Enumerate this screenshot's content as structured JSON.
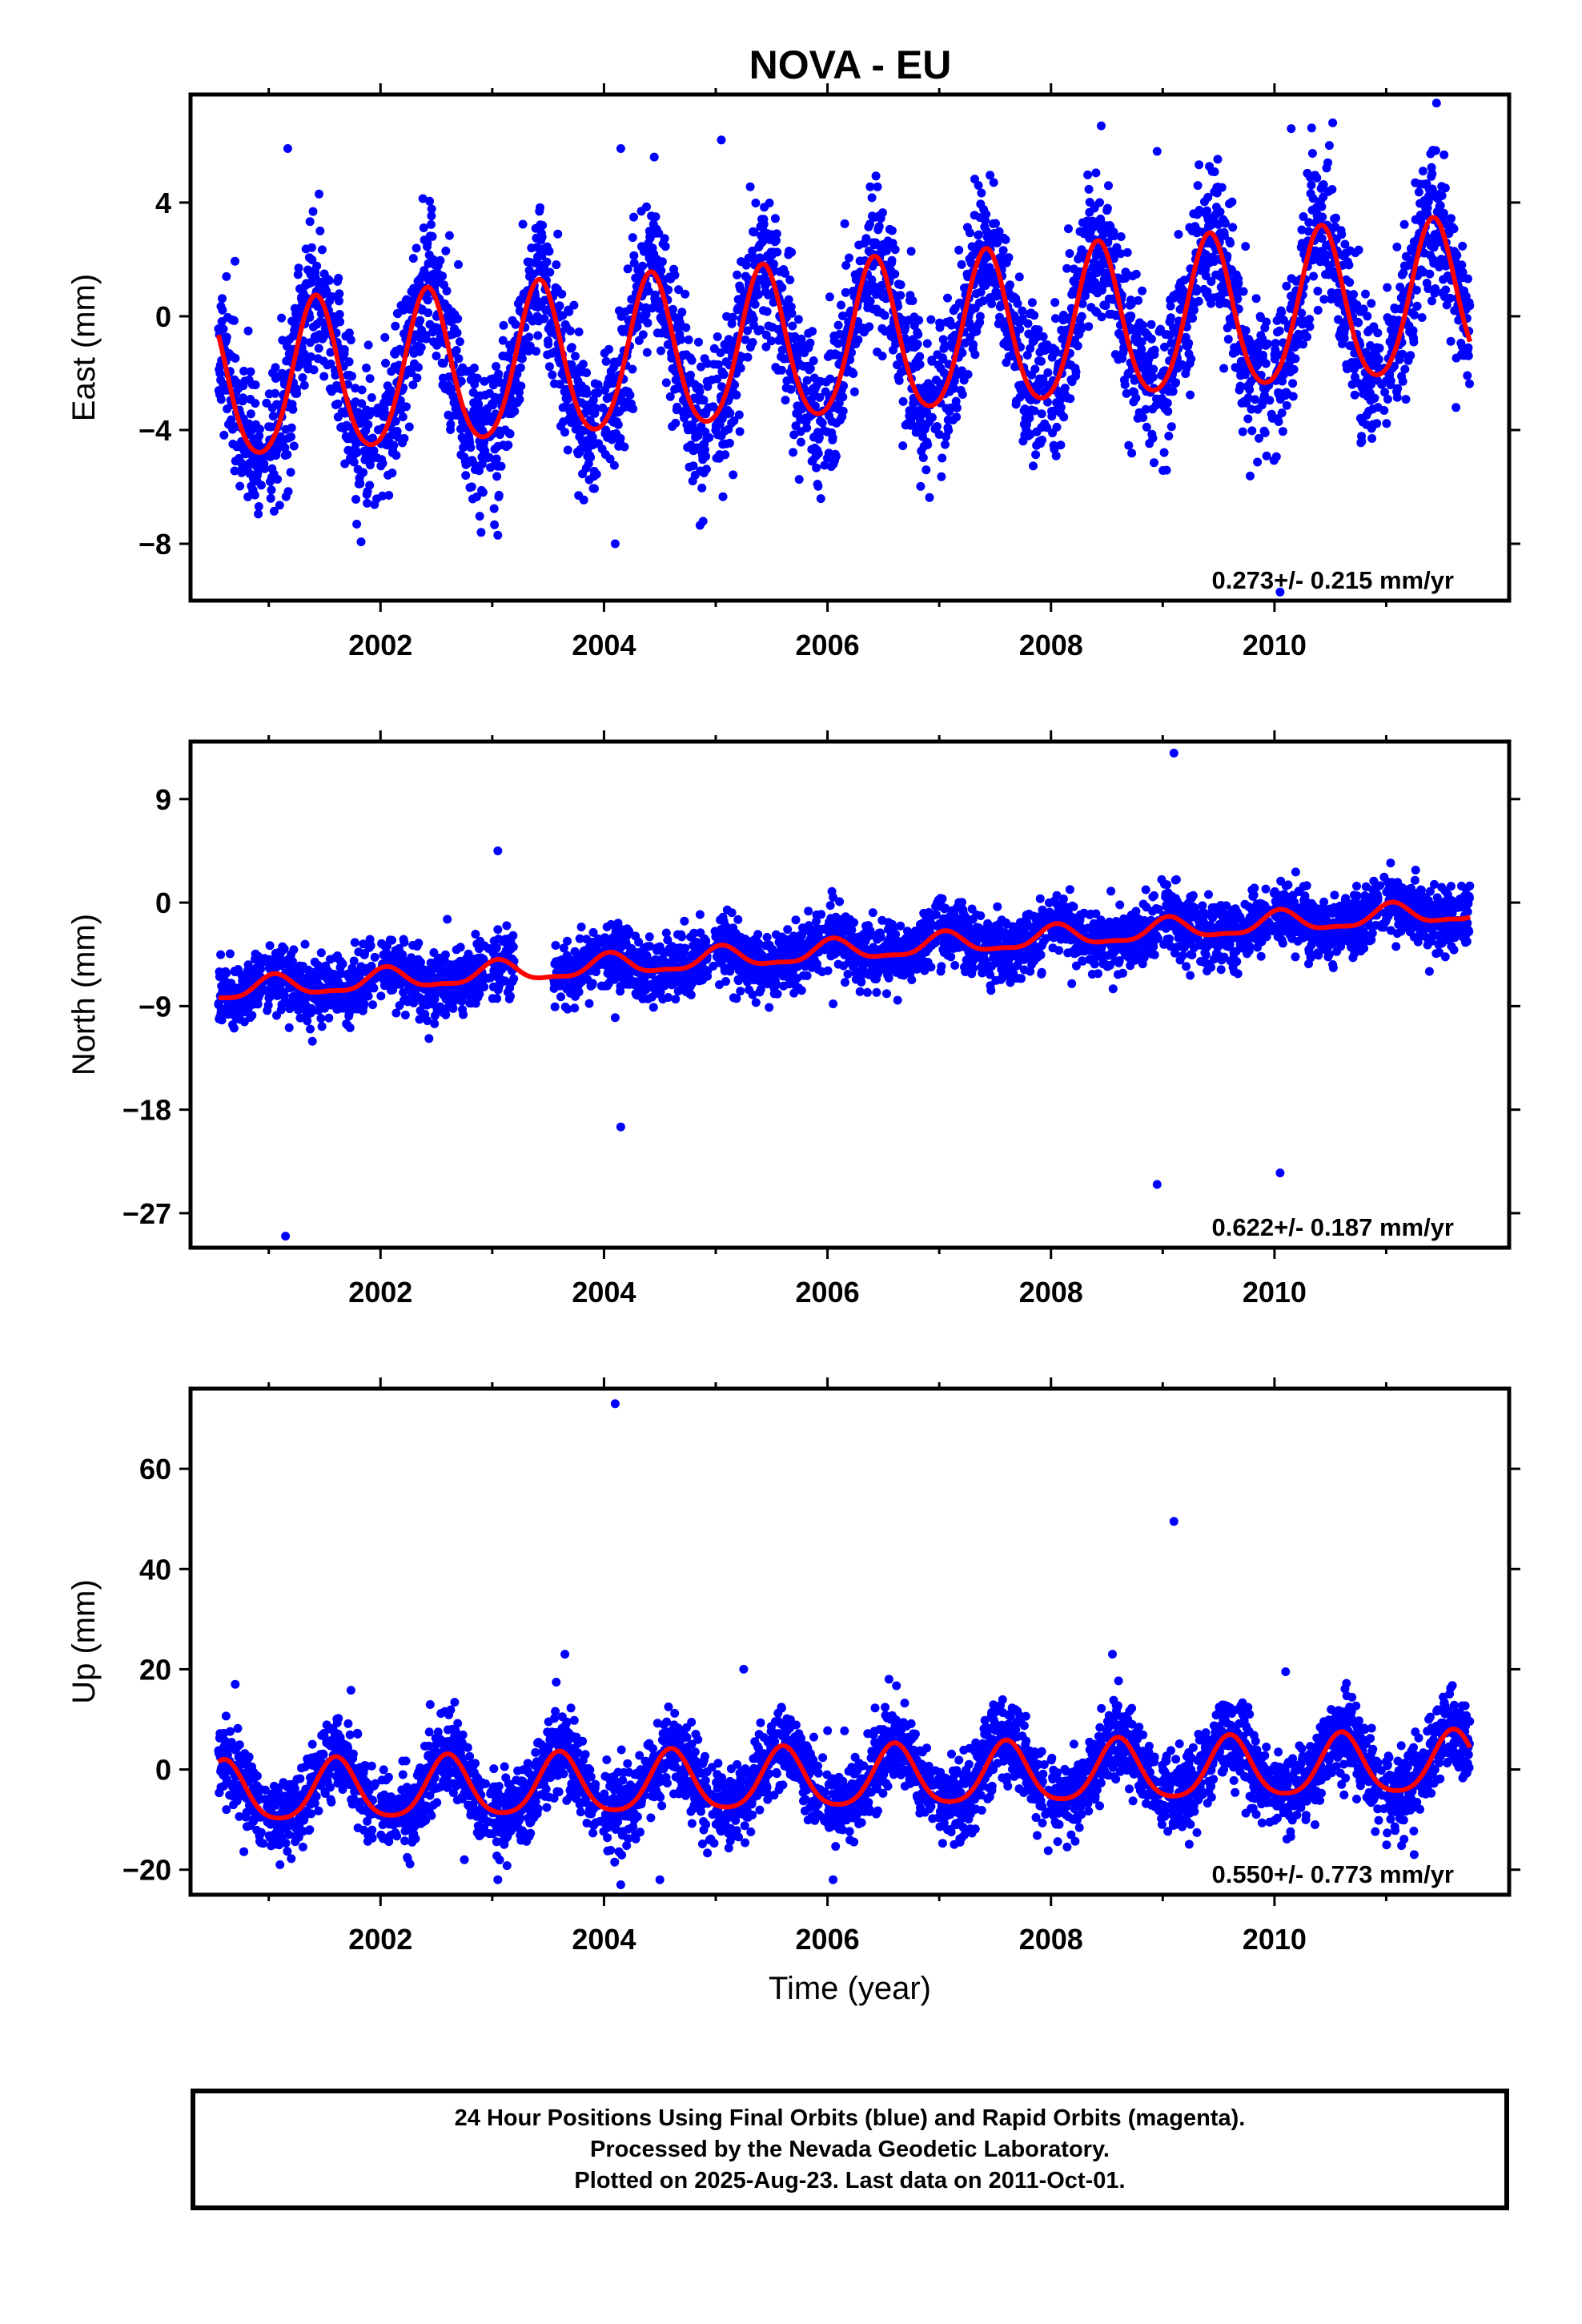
{
  "title": "NOVA - EU",
  "caption": [
    "24 Hour Positions Using Final Orbits (blue) and Rapid Orbits (magenta).",
    "Processed by the Nevada Geodetic Laboratory.",
    "Plotted on 2025-Aug-23. Last data on 2011-Oct-01."
  ],
  "colors": {
    "points": "#0000ff",
    "model": "#ff0000",
    "frame": "#000000"
  },
  "chart_data": [
    {
      "type": "scatter",
      "title": "NOVA - EU",
      "ylabel": "East (mm)",
      "xlabel": "",
      "xlim": [
        2000.3,
        2012.1
      ],
      "ylim": [
        -10,
        7.8
      ],
      "xticks": [
        2002,
        2004,
        2006,
        2008,
        2010
      ],
      "yticks": [
        4,
        0,
        -4,
        -8
      ],
      "rate_label": "0.273+/- 0.215 mm/yr",
      "data_span": [
        2000.55,
        2011.75
      ],
      "model": {
        "offset": -1.0,
        "trend": 0.273,
        "annual_amplitude": 2.7,
        "annual_peak": 0.42,
        "semiannual_amplitude": 0.3
      },
      "scatter_sigma": 1.3,
      "outliers": [
        [
          2001.17,
          5.9
        ],
        [
          2001.45,
          4.3
        ],
        [
          2002.9,
          -7.6
        ],
        [
          2003.05,
          -7.7
        ],
        [
          2004.1,
          -8.0
        ],
        [
          2004.15,
          5.9
        ],
        [
          2004.45,
          5.6
        ],
        [
          2005.05,
          6.2
        ],
        [
          2008.45,
          6.7
        ],
        [
          2008.95,
          5.8
        ],
        [
          2010.05,
          -9.7
        ],
        [
          2010.15,
          6.6
        ],
        [
          2011.45,
          7.5
        ]
      ],
      "series": [
        {
          "name": "24 Hour Positions Using Final Orbits (blue)"
        },
        {
          "name": "Rapid Orbits (magenta)"
        }
      ]
    },
    {
      "type": "scatter",
      "ylabel": "North (mm)",
      "xlabel": "",
      "xlim": [
        2000.3,
        2012.1
      ],
      "ylim": [
        -30,
        14
      ],
      "xticks": [
        2002,
        2004,
        2006,
        2008,
        2010
      ],
      "yticks": [
        9,
        0,
        -9,
        -18,
        -27
      ],
      "rate_label": "0.622+/- 0.187 mm/yr",
      "data_span": [
        2000.55,
        2011.75
      ],
      "model": {
        "offset": -4.3,
        "trend": 0.622,
        "annual_amplitude": 0.9,
        "annual_peak": 0.05,
        "semiannual_amplitude": 0.3
      },
      "scatter_sigma": 1.4,
      "outliers": [
        [
          2000.85,
          -9.8
        ],
        [
          2001.15,
          -29.0
        ],
        [
          2003.05,
          4.5
        ],
        [
          2004.1,
          -10.0
        ],
        [
          2004.15,
          -19.5
        ],
        [
          2005.2,
          -6.7
        ],
        [
          2006.05,
          -8.8
        ],
        [
          2008.95,
          -24.5
        ],
        [
          2009.1,
          13.0
        ],
        [
          2010.05,
          -23.5
        ]
      ],
      "series": [
        {
          "name": "24 Hour Positions Using Final Orbits (blue)"
        },
        {
          "name": "Rapid Orbits (magenta)"
        }
      ]
    },
    {
      "type": "scatter",
      "ylabel": "Up (mm)",
      "xlabel": "Time (year)",
      "xlim": [
        2000.3,
        2012.1
      ],
      "ylim": [
        -25,
        76
      ],
      "xticks": [
        2002,
        2004,
        2006,
        2008,
        2010
      ],
      "yticks": [
        60,
        40,
        20,
        0,
        -20
      ],
      "rate_label": "0.550+/- 0.773 mm/yr",
      "data_span": [
        2000.55,
        2011.75
      ],
      "model": {
        "offset": -2.0,
        "trend": 0.55,
        "annual_amplitude": 6.0,
        "annual_peak": 0.6,
        "semiannual_amplitude": 1.0
      },
      "scatter_sigma": 4.0,
      "outliers": [
        [
          2000.7,
          17.0
        ],
        [
          2001.1,
          -19.0
        ],
        [
          2002.75,
          -18.0
        ],
        [
          2003.05,
          -22.0
        ],
        [
          2003.65,
          23.0
        ],
        [
          2004.1,
          73.0
        ],
        [
          2004.15,
          -23.0
        ],
        [
          2004.5,
          -22.0
        ],
        [
          2005.25,
          20.0
        ],
        [
          2006.05,
          -22.0
        ],
        [
          2006.55,
          18.0
        ],
        [
          2008.55,
          23.0
        ],
        [
          2009.1,
          49.5
        ],
        [
          2010.1,
          19.5
        ],
        [
          2011.25,
          -17.0
        ]
      ],
      "series": [
        {
          "name": "24 Hour Positions Using Final Orbits (blue)"
        },
        {
          "name": "Rapid Orbits (magenta)"
        }
      ]
    }
  ]
}
